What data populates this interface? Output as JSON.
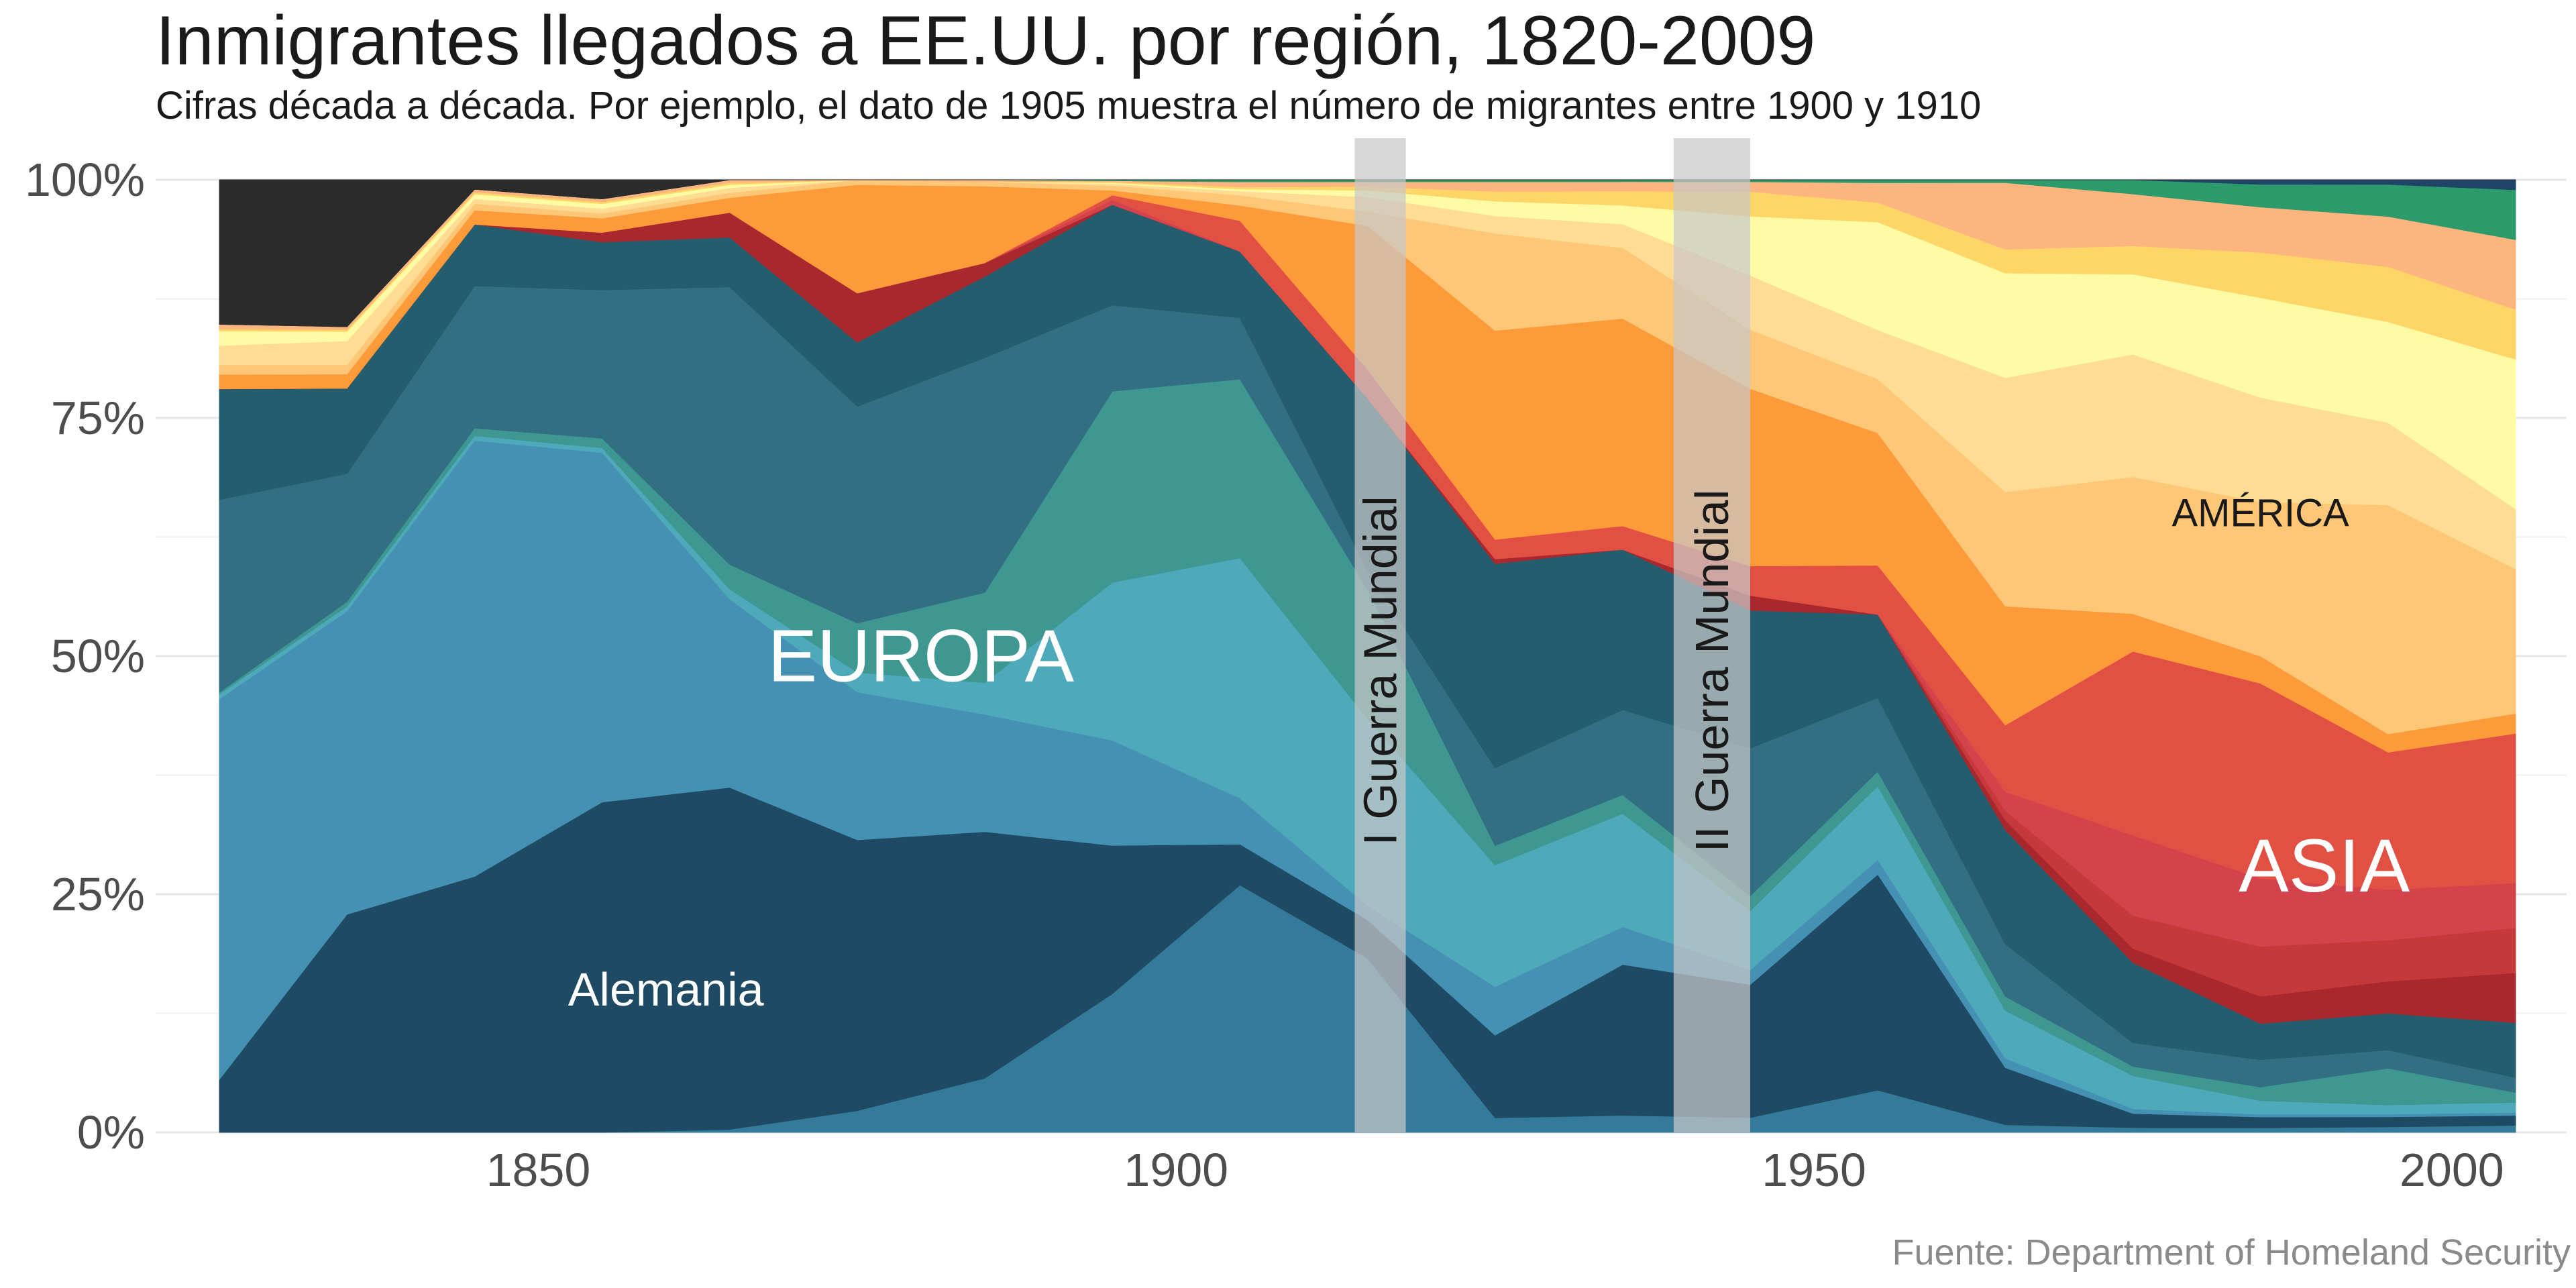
{
  "title": "Inmigrantes llegados a EE.UU. por región, 1820-2009",
  "subtitle": "Cifras década a década. Por ejemplo, el dato de 1905 muestra el número de migrantes entre 1900 y 1910",
  "caption": "Fuente: Department of Homeland Security",
  "chart_data": {
    "type": "area",
    "stacked": true,
    "x": [
      1825,
      1835,
      1845,
      1855,
      1865,
      1875,
      1885,
      1895,
      1905,
      1915,
      1925,
      1935,
      1945,
      1955,
      1965,
      1975,
      1985,
      1995,
      2005
    ],
    "xlim": [
      1820,
      2009
    ],
    "ylim": [
      0,
      100
    ],
    "xticks": [
      1850,
      1900,
      1950,
      2000
    ],
    "yticks": [
      0,
      25,
      50,
      75,
      100
    ],
    "ytick_labels": [
      "0%",
      "25%",
      "50%",
      "75%",
      "100%"
    ],
    "grid": true,
    "series": [
      {
        "color": "#347b9b",
        "values": [
          0,
          0,
          0,
          0,
          0.3,
          2.2,
          6,
          14.5,
          24.2,
          18.2,
          1.5,
          1.8,
          1.5,
          4.3,
          0.8,
          0.5,
          0.5,
          0.6,
          0.7
        ]
      },
      {
        "color": "#1f4a63",
        "values": [
          5.5,
          23,
          27,
          34.5,
          34.5,
          27.5,
          27.3,
          15.5,
          4,
          4,
          8.5,
          16,
          13.5,
          22,
          6,
          1.5,
          1.2,
          1.1,
          1
        ]
      },
      {
        "color": "#4591b3",
        "values": [
          39.5,
          32,
          46,
          36.5,
          19,
          15,
          13,
          11,
          4.5,
          1.5,
          5,
          4,
          1.5,
          1.5,
          1,
          0.5,
          0.3,
          0.3,
          0.3
        ]
      },
      {
        "color": "#4ea9bb",
        "values": [
          0.5,
          0.5,
          0.5,
          0.5,
          1,
          2,
          3.5,
          16.5,
          23.5,
          19.5,
          12.5,
          12,
          6,
          7.5,
          5,
          3.5,
          1.5,
          1,
          1
        ]
      },
      {
        "color": "#3f9791",
        "values": [
          0.2,
          0.5,
          0.8,
          1,
          2.5,
          5,
          10,
          20,
          17.5,
          13.5,
          2,
          2,
          1.5,
          1.5,
          1.5,
          1,
          1.5,
          4,
          1
        ]
      },
      {
        "color": "#326f82",
        "values": [
          20,
          13.5,
          15,
          15.5,
          28,
          22,
          26,
          9,
          6,
          2,
          8,
          9,
          15,
          7.5,
          5.5,
          2.5,
          3,
          2,
          1.5
        ]
      },
      {
        "color": "#235d6e",
        "values": [
          11.5,
          9,
          6.5,
          5,
          5,
          6.5,
          9,
          10.5,
          6.5,
          18,
          21,
          17,
          14,
          8.5,
          12,
          8.5,
          4,
          4,
          5.5
        ]
      },
      {
        "color": "#a9282d",
        "values": [
          0,
          0,
          0,
          1,
          2.5,
          5,
          1.5,
          0,
          0,
          0,
          0.5,
          0,
          1.5,
          0,
          1,
          1.5,
          3,
          3.5,
          5
        ]
      },
      {
        "color": "#c6393a",
        "values": [
          0,
          0,
          0,
          0,
          0,
          0,
          0,
          0,
          0,
          0,
          0,
          0,
          0,
          0,
          1,
          3.5,
          5.5,
          4.5,
          4.5
        ]
      },
      {
        "color": "#d4424c",
        "values": [
          0,
          0,
          0,
          0,
          0,
          0,
          0,
          0.5,
          0,
          0,
          0,
          0,
          0,
          0,
          2,
          8.5,
          7.5,
          5.5,
          4.5
        ]
      },
      {
        "color": "#e15043",
        "values": [
          0,
          0,
          0,
          0,
          0,
          0,
          0,
          0.5,
          3,
          3,
          2,
          2.5,
          3,
          5,
          7,
          19.5,
          21.5,
          15,
          15
        ]
      },
      {
        "color": "#fd9b3b",
        "values": [
          1.5,
          1.5,
          1.5,
          1.5,
          1.5,
          11,
          8.5,
          0.5,
          1.5,
          15,
          21.5,
          22,
          18,
          13.5,
          12.5,
          4,
          3,
          2,
          2
        ]
      },
      {
        "color": "#fec777",
        "values": [
          1,
          1,
          0.7,
          0.5,
          0.5,
          0.5,
          0.5,
          0.5,
          1,
          1.5,
          10,
          7.5,
          6,
          5.5,
          12,
          14.5,
          17,
          25,
          14.5
        ]
      },
      {
        "color": "#fedc94",
        "values": [
          2,
          2.5,
          0.5,
          0.5,
          0.5,
          0,
          0,
          0.2,
          0.4,
          1.5,
          1.8,
          2.5,
          5.5,
          5,
          12,
          13,
          11.5,
          9,
          6
        ]
      },
      {
        "color": "#fefba4",
        "values": [
          1.5,
          1,
          0.5,
          0.5,
          0.3,
          0,
          0,
          0.1,
          0.2,
          0.7,
          1.5,
          2,
          6,
          11,
          11,
          8.5,
          11,
          11,
          15
        ]
      },
      {
        "color": "#fed567",
        "values": [
          0.2,
          0.2,
          0.2,
          0.2,
          0.2,
          0,
          0,
          0.1,
          0.2,
          0.4,
          1,
          1.5,
          2.5,
          2,
          2.5,
          3,
          5,
          6,
          5
        ]
      },
      {
        "color": "#fdb57f",
        "values": [
          0.5,
          0.3,
          0.3,
          0.3,
          0.3,
          0,
          0.2,
          0.1,
          0.5,
          0.5,
          1,
          1,
          1,
          2,
          7,
          5.5,
          5,
          5.5,
          7
        ]
      },
      {
        "color": "#2c9a6a",
        "values": [
          0,
          0,
          0,
          0,
          0,
          0,
          0,
          0.1,
          0.2,
          0.2,
          0.2,
          0.2,
          0.2,
          0.3,
          0.3,
          1.5,
          2.5,
          3.5,
          5
        ]
      },
      {
        "color": "#1f4468",
        "values": [
          0,
          0,
          0,
          0,
          0,
          0,
          0,
          0,
          0,
          0,
          0,
          0,
          0,
          0,
          0,
          0,
          0.5,
          0.5,
          1
        ]
      },
      {
        "color": "#2b2b2b",
        "values": [
          15,
          15.5,
          1,
          2,
          0,
          0,
          0,
          0,
          0,
          0,
          0,
          0,
          0,
          0,
          0,
          0,
          0,
          0,
          0
        ]
      }
    ],
    "bands": [
      {
        "label": "I Guerra Mundial",
        "from": 1914,
        "to": 1918
      },
      {
        "label": "II Guerra Mundial",
        "from": 1939,
        "to": 1945
      }
    ],
    "annotations": [
      {
        "text": "EUROPA",
        "x": 1880,
        "y": 50
      },
      {
        "text": "Alemania",
        "x": 1860,
        "y": 15
      },
      {
        "text": "AMÉRICA",
        "x": 1985,
        "y": 65
      },
      {
        "text": "ASIA",
        "x": 1990,
        "y": 28
      }
    ]
  }
}
